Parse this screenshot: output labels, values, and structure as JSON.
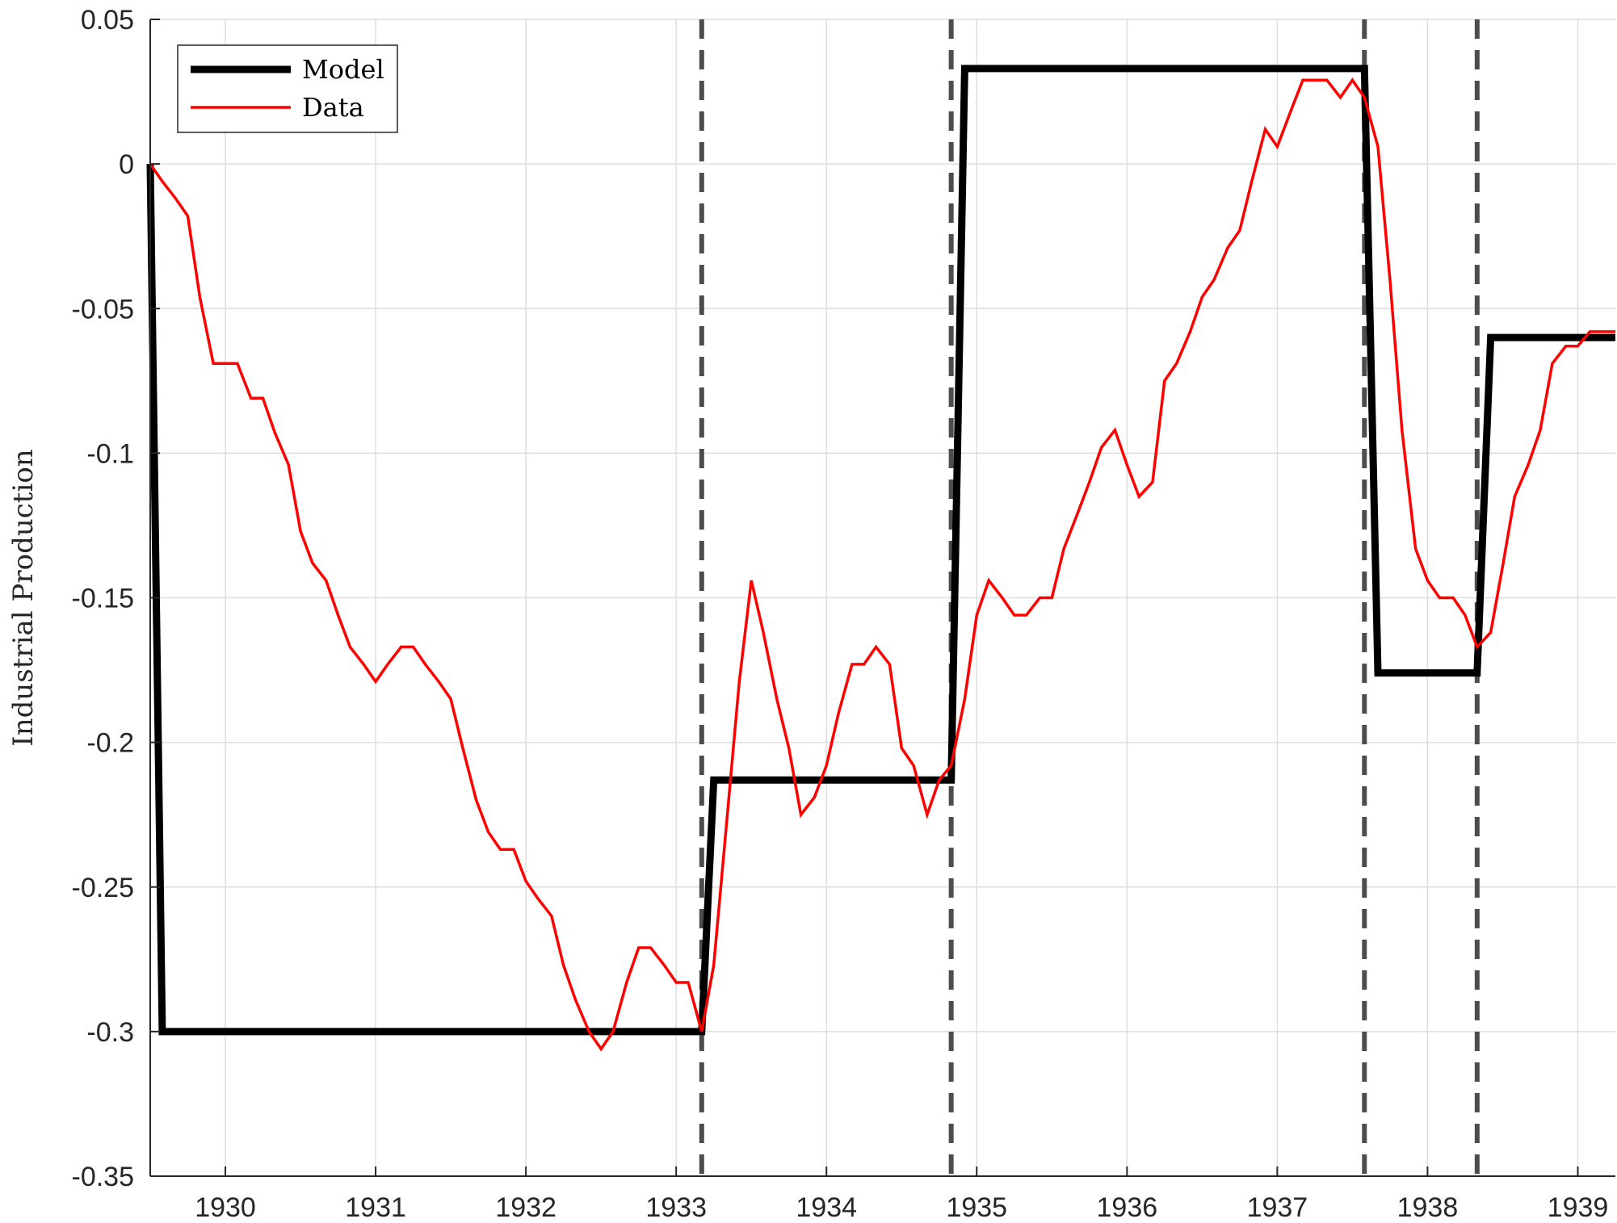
{
  "chart_data": {
    "type": "line",
    "title": "",
    "xlabel": "",
    "ylabel": "Industrial Production",
    "xlim": [
      1929.5,
      1939.25
    ],
    "ylim": [
      -0.35,
      0.05
    ],
    "xticks": [
      1930,
      1931,
      1932,
      1933,
      1934,
      1935,
      1936,
      1937,
      1938,
      1939
    ],
    "xtick_labels": [
      "1930",
      "1931",
      "1932",
      "1933",
      "1934",
      "1935",
      "1936",
      "1937",
      "1938",
      "1939"
    ],
    "yticks": [
      0.05,
      0,
      -0.05,
      -0.1,
      -0.15,
      -0.2,
      -0.25,
      -0.3,
      -0.35
    ],
    "ytick_labels": [
      "0.05",
      "0",
      "-0.05",
      "-0.1",
      "-0.15",
      "-0.2",
      "-0.25",
      "-0.3",
      "-0.35"
    ],
    "grid": true,
    "legend_position": "top-left",
    "vertical_lines": [
      1933.17,
      1934.83,
      1937.58,
      1938.33
    ],
    "series": [
      {
        "name": "Model",
        "color": "#000000",
        "style": "solid-thick",
        "x": [
          1929.5,
          1929.58,
          1933.17,
          1933.25,
          1934.83,
          1934.92,
          1937.58,
          1937.67,
          1938.33,
          1938.42,
          1939.25
        ],
        "y": [
          0,
          -0.3,
          -0.3,
          -0.213,
          -0.213,
          0.033,
          0.033,
          -0.176,
          -0.176,
          -0.06,
          -0.06
        ]
      },
      {
        "name": "Data",
        "color": "#ff0000",
        "style": "solid",
        "x": [
          1929.5,
          1929.58,
          1929.67,
          1929.75,
          1929.83,
          1929.92,
          1930.0,
          1930.08,
          1930.17,
          1930.25,
          1930.33,
          1930.42,
          1930.5,
          1930.58,
          1930.67,
          1930.75,
          1930.83,
          1930.92,
          1931.0,
          1931.08,
          1931.17,
          1931.25,
          1931.33,
          1931.42,
          1931.5,
          1931.58,
          1931.67,
          1931.75,
          1931.83,
          1931.92,
          1932.0,
          1932.08,
          1932.17,
          1932.25,
          1932.33,
          1932.42,
          1932.5,
          1932.58,
          1932.67,
          1932.75,
          1932.83,
          1932.92,
          1933.0,
          1933.08,
          1933.17,
          1933.25,
          1933.33,
          1933.42,
          1933.5,
          1933.58,
          1933.67,
          1933.75,
          1933.83,
          1933.92,
          1934.0,
          1934.08,
          1934.17,
          1934.25,
          1934.33,
          1934.42,
          1934.5,
          1934.58,
          1934.67,
          1934.75,
          1934.83,
          1934.92,
          1935.0,
          1935.08,
          1935.17,
          1935.25,
          1935.33,
          1935.42,
          1935.5,
          1935.58,
          1935.67,
          1935.75,
          1935.83,
          1935.92,
          1936.0,
          1936.08,
          1936.17,
          1936.25,
          1936.33,
          1936.42,
          1936.5,
          1936.58,
          1936.67,
          1936.75,
          1936.83,
          1936.92,
          1937.0,
          1937.08,
          1937.17,
          1937.25,
          1937.33,
          1937.42,
          1937.5,
          1937.58,
          1937.67,
          1937.75,
          1937.83,
          1937.92,
          1938.0,
          1938.08,
          1938.17,
          1938.25,
          1938.33,
          1938.42,
          1938.5,
          1938.58,
          1938.67,
          1938.75,
          1938.83,
          1938.92,
          1939.0,
          1939.08,
          1939.17,
          1939.25
        ],
        "y": [
          0,
          -0.006,
          -0.012,
          -0.018,
          -0.046,
          -0.069,
          -0.069,
          -0.069,
          -0.081,
          -0.081,
          -0.093,
          -0.104,
          -0.127,
          -0.138,
          -0.144,
          -0.156,
          -0.167,
          -0.173,
          -0.179,
          -0.173,
          -0.167,
          -0.167,
          -0.173,
          -0.179,
          -0.185,
          -0.202,
          -0.22,
          -0.231,
          -0.237,
          -0.237,
          -0.248,
          -0.254,
          -0.26,
          -0.277,
          -0.289,
          -0.3,
          -0.306,
          -0.3,
          -0.283,
          -0.271,
          -0.271,
          -0.277,
          -0.283,
          -0.283,
          -0.3,
          -0.277,
          -0.231,
          -0.179,
          -0.144,
          -0.162,
          -0.185,
          -0.202,
          -0.225,
          -0.219,
          -0.208,
          -0.19,
          -0.173,
          -0.173,
          -0.167,
          -0.173,
          -0.202,
          -0.208,
          -0.225,
          -0.213,
          -0.208,
          -0.185,
          -0.156,
          -0.144,
          -0.15,
          -0.156,
          -0.156,
          -0.15,
          -0.15,
          -0.133,
          -0.121,
          -0.11,
          -0.098,
          -0.092,
          -0.104,
          -0.115,
          -0.11,
          -0.075,
          -0.069,
          -0.058,
          -0.046,
          -0.04,
          -0.029,
          -0.023,
          -0.006,
          0.012,
          0.006,
          0.017,
          0.029,
          0.029,
          0.029,
          0.023,
          0.029,
          0.023,
          0.006,
          -0.04,
          -0.092,
          -0.133,
          -0.144,
          -0.15,
          -0.15,
          -0.156,
          -0.167,
          -0.162,
          -0.139,
          -0.115,
          -0.104,
          -0.092,
          -0.069,
          -0.063,
          -0.063,
          -0.058,
          -0.058,
          -0.058
        ]
      }
    ]
  }
}
